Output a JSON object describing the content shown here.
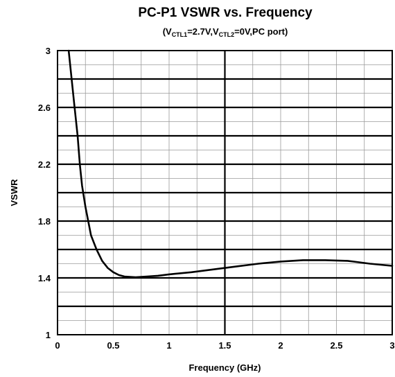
{
  "chart_data": {
    "type": "line",
    "title": "PC-P1 VSWR vs. Frequency",
    "subtitle_parts": [
      {
        "text": "(V",
        "sub": false
      },
      {
        "text": "CTL1",
        "sub": true
      },
      {
        "text": "=2.7V,V",
        "sub": false
      },
      {
        "text": "CTL2",
        "sub": true
      },
      {
        "text": "=0V,PC port)",
        "sub": false
      }
    ],
    "xlabel": "Frequency (GHz)",
    "ylabel": "VSWR",
    "xlim": [
      0,
      3
    ],
    "ylim": [
      1,
      3
    ],
    "x_ticks": [
      {
        "value": 0,
        "label": "0"
      },
      {
        "value": 0.5,
        "label": "0.5"
      },
      {
        "value": 1,
        "label": "1"
      },
      {
        "value": 1.5,
        "label": "1.5"
      },
      {
        "value": 2,
        "label": "2"
      },
      {
        "value": 2.5,
        "label": "2.5"
      },
      {
        "value": 3,
        "label": "3"
      }
    ],
    "y_ticks": [
      {
        "value": 1,
        "label": "1"
      },
      {
        "value": 1.4,
        "label": "1.4"
      },
      {
        "value": 1.8,
        "label": "1.8"
      },
      {
        "value": 2.2,
        "label": "2.2"
      },
      {
        "value": 2.6,
        "label": "2.6"
      },
      {
        "value": 3,
        "label": "3"
      }
    ],
    "grid": true,
    "series": [
      {
        "color": "#000000",
        "x": [
          0.1,
          0.12,
          0.15,
          0.18,
          0.2,
          0.22,
          0.25,
          0.28,
          0.3,
          0.35,
          0.4,
          0.45,
          0.5,
          0.55,
          0.6,
          0.7,
          0.8,
          0.9,
          1.0,
          1.2,
          1.4,
          1.6,
          1.8,
          2.0,
          2.2,
          2.4,
          2.6,
          2.8,
          3.0
        ],
        "y": [
          3.0,
          2.85,
          2.62,
          2.4,
          2.2,
          2.05,
          1.9,
          1.78,
          1.7,
          1.6,
          1.52,
          1.47,
          1.44,
          1.42,
          1.41,
          1.405,
          1.41,
          1.415,
          1.425,
          1.44,
          1.46,
          1.48,
          1.5,
          1.515,
          1.525,
          1.525,
          1.52,
          1.5,
          1.485
        ]
      }
    ]
  }
}
